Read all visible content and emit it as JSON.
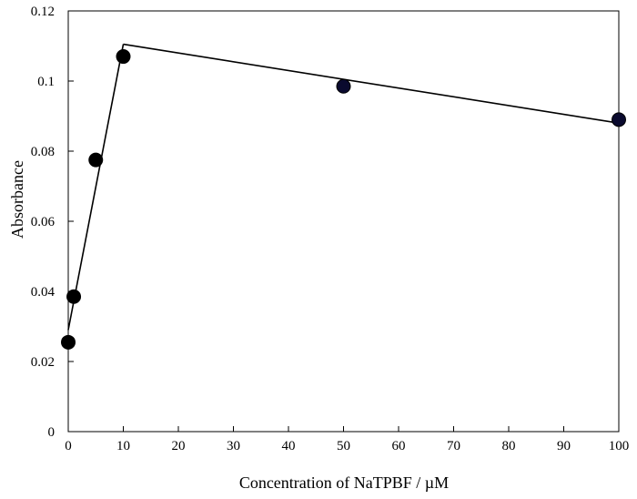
{
  "chart_data": {
    "type": "scatter",
    "title": "",
    "xlabel": "Concentration of NaTPBF / µM",
    "ylabel": "Absorbance",
    "xlim": [
      0,
      100
    ],
    "ylim": [
      0,
      0.12
    ],
    "xticks": [
      0,
      10,
      20,
      30,
      40,
      50,
      60,
      70,
      80,
      90,
      100
    ],
    "yticks": [
      0,
      0.02,
      0.04,
      0.06,
      0.08,
      0.1,
      0.12
    ],
    "xtick_labels": [
      "0",
      "10",
      "20",
      "30",
      "40",
      "50",
      "60",
      "70",
      "80",
      "90",
      "100"
    ],
    "ytick_labels": [
      "0",
      "0.02",
      "0.04",
      "0.06",
      "0.08",
      "0.1",
      "0.12"
    ],
    "grid": false,
    "legend": false,
    "series": [
      {
        "type": "scatter",
        "x": [
          0,
          1,
          5,
          10
        ],
        "y": [
          0.0255,
          0.0385,
          0.0775,
          0.107
        ],
        "color": "#000000"
      },
      {
        "type": "scatter",
        "x": [
          50,
          100
        ],
        "y": [
          0.0985,
          0.089
        ],
        "color": "#0a0a2e"
      }
    ],
    "fit_lines": [
      {
        "x": [
          0,
          10
        ],
        "y": [
          0.029,
          0.1105
        ]
      },
      {
        "x": [
          10,
          100
        ],
        "y": [
          0.1105,
          0.088
        ]
      }
    ],
    "colors": {
      "axis": "#000000",
      "line": "#000000"
    }
  }
}
